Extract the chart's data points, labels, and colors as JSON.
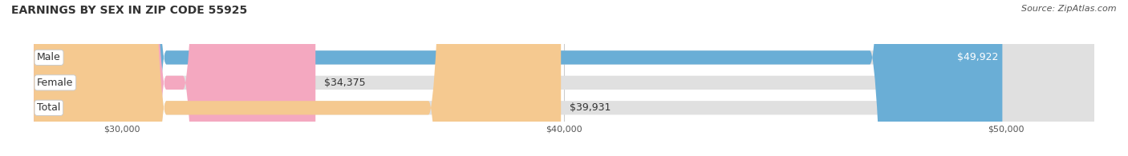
{
  "title": "EARNINGS BY SEX IN ZIP CODE 55925",
  "source": "Source: ZipAtlas.com",
  "categories": [
    "Male",
    "Female",
    "Total"
  ],
  "values": [
    49922,
    34375,
    39931
  ],
  "bar_colors": [
    "#6aaed6",
    "#f4a8c0",
    "#f5c990"
  ],
  "bar_bg_color": "#e0e0e0",
  "x_min": 28000,
  "x_max": 52000,
  "x_ticks": [
    30000,
    40000,
    50000
  ],
  "x_tick_labels": [
    "$30,000",
    "$40,000",
    "$50,000"
  ],
  "title_fontsize": 10,
  "source_fontsize": 8,
  "label_fontsize": 9,
  "value_fontsize": 9,
  "background_color": "#ffffff",
  "bar_height": 0.55
}
